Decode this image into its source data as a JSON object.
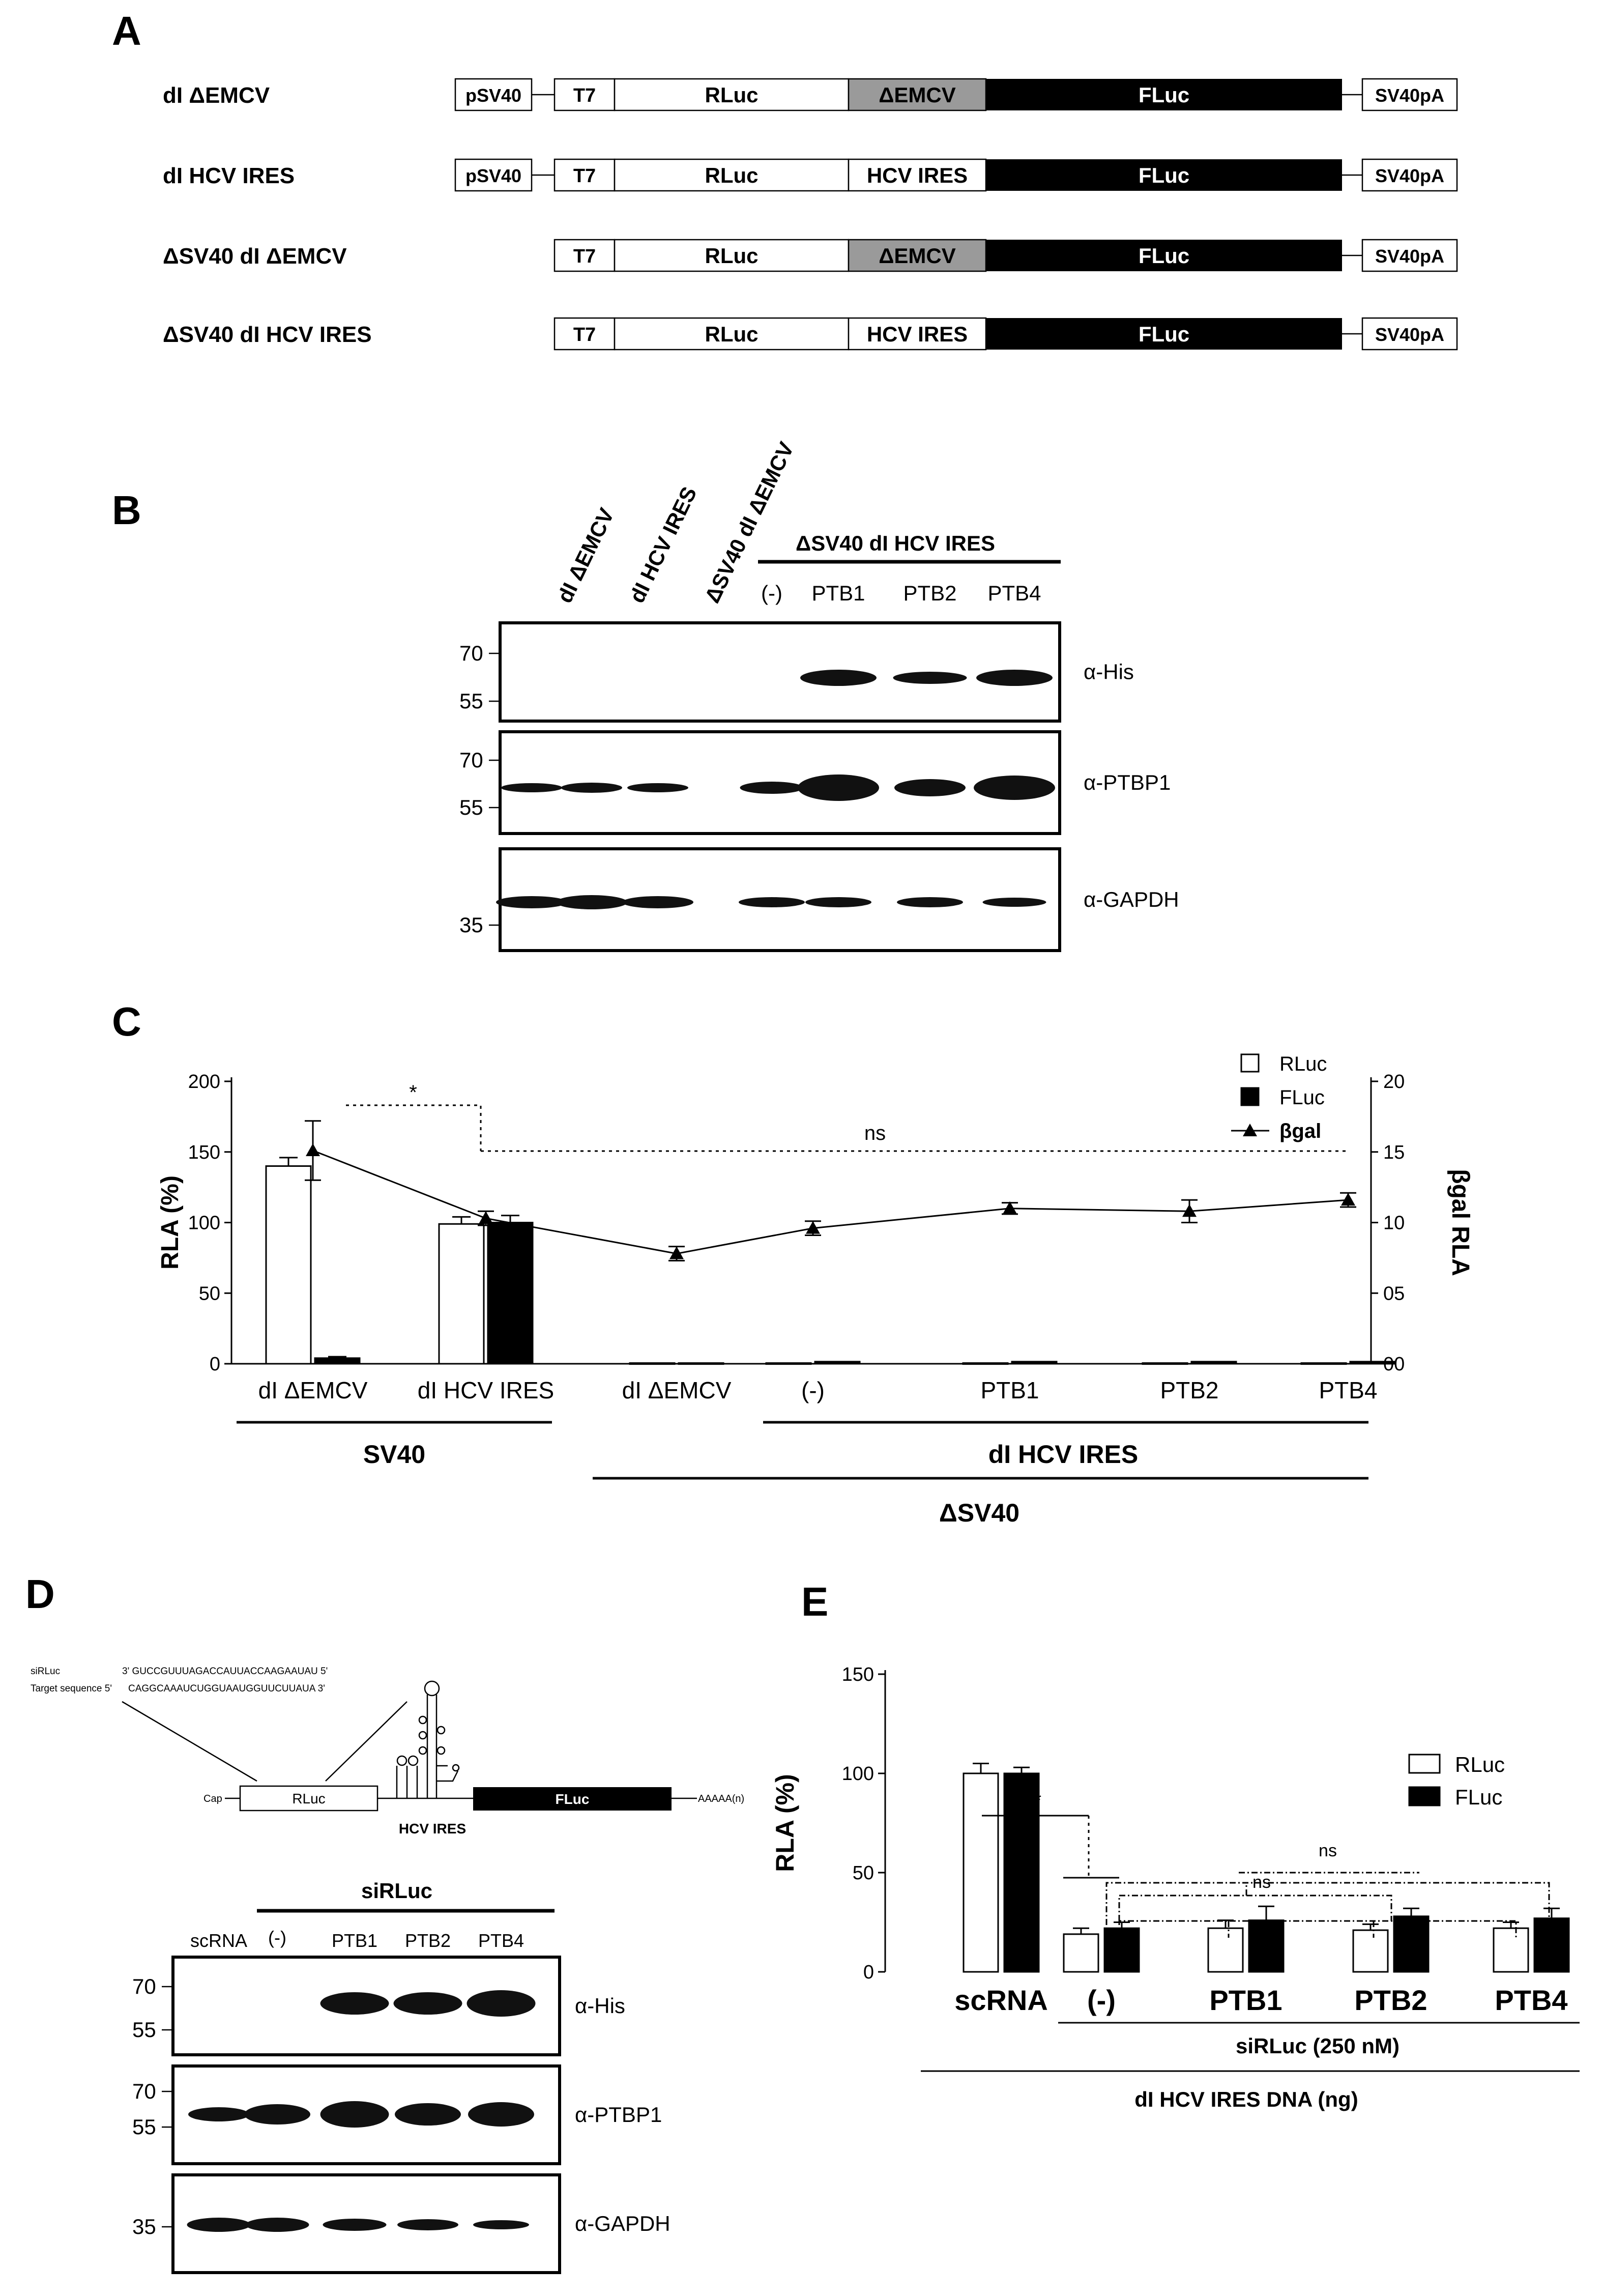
{
  "panels": {
    "A": {
      "letter": "A",
      "constructs": [
        {
          "name": "dI ΔEMCV",
          "has_promoter": true,
          "promoter": "pSV40",
          "t7": "T7",
          "rluc": "RLuc",
          "middle": "ΔEMCV",
          "middle_style": "gray",
          "fluc": "FLuc",
          "polya": "SV40pA"
        },
        {
          "name": "dI HCV IRES",
          "has_promoter": true,
          "promoter": "pSV40",
          "t7": "T7",
          "rluc": "RLuc",
          "middle": "HCV IRES",
          "middle_style": "white",
          "fluc": "FLuc",
          "polya": "SV40pA"
        },
        {
          "name": "ΔSV40 dI ΔEMCV",
          "has_promoter": false,
          "promoter": "",
          "t7": "T7",
          "rluc": "RLuc",
          "middle": "ΔEMCV",
          "middle_style": "gray",
          "fluc": "FLuc",
          "polya": "SV40pA"
        },
        {
          "name": "ΔSV40 dI HCV IRES",
          "has_promoter": false,
          "promoter": "",
          "t7": "T7",
          "rluc": "RLuc",
          "middle": "HCV IRES",
          "middle_style": "white",
          "fluc": "FLuc",
          "polya": "SV40pA"
        }
      ]
    },
    "B": {
      "letter": "B",
      "rotated_lanes": [
        "dI ΔEMCV",
        "dI HCV IRES",
        "ΔSV40 dI ΔEMCV"
      ],
      "group_label": "ΔSV40 dI HCV IRES",
      "lanes": [
        "(-)",
        "PTB1",
        "PTB2",
        "PTB4"
      ],
      "blots": [
        {
          "antibody": "α-His",
          "markers": [
            "70",
            "55"
          ]
        },
        {
          "antibody": "α-PTBP1",
          "markers": [
            "70",
            "55"
          ]
        },
        {
          "antibody": "α-GAPDH",
          "markers": [
            "35"
          ]
        }
      ]
    },
    "C": {
      "letter": "C",
      "sig_star": "*",
      "sig_ns": "ns",
      "group_sv40": "SV40",
      "group_dl_hcv": "dI HCV IRES",
      "group_dsv40": "ΔSV40"
    },
    "D": {
      "letter": "D",
      "sirluc_seq_label": "siRLuc",
      "sirluc_seq": "3' GUCCGUUUAGACCAUUACCAAGAAUAU 5'",
      "target_seq_label": "Target sequence 5'",
      "target_seq": "CAGGCAAAUCUGGUAAUGGUUCUUAUA 3'",
      "cap": "Cap",
      "rluc": "RLuc",
      "ires": "HCV IRES",
      "fluc": "FLuc",
      "polya": "AAAAA(n)",
      "group_label": "siRLuc",
      "lanes": [
        "scRNA",
        "(-)",
        "PTB1",
        "PTB2",
        "PTB4"
      ],
      "blots": [
        {
          "antibody": "α-His",
          "markers": [
            "70",
            "55"
          ]
        },
        {
          "antibody": "α-PTBP1",
          "markers": [
            "70",
            "55"
          ]
        },
        {
          "antibody": "α-GAPDH",
          "markers": [
            "35"
          ]
        }
      ]
    },
    "E": {
      "letter": "E",
      "sig_star": "*",
      "sig_ns_1": "ns",
      "sig_ns_2": "ns",
      "group_sirluc": "siRLuc (250 nM)",
      "group_dna": "dI HCV IRES DNA (ng)"
    }
  },
  "chart_data": [
    {
      "id": "C",
      "type": "bar",
      "ylabel": "RLA (%)",
      "y2label": "βgal RLA",
      "ylim": [
        0,
        200
      ],
      "yticks": [
        0,
        50,
        100,
        150,
        200
      ],
      "y2lim": [
        0,
        20
      ],
      "y2ticks": [
        "00",
        "05",
        "10",
        "15",
        "20"
      ],
      "categories": [
        "dI ΔEMCV",
        "dI HCV IRES",
        "dI ΔEMCV",
        "(-)",
        "PTB1",
        "PTB2",
        "PTB4"
      ],
      "series": [
        {
          "name": "RLuc",
          "kind": "bar",
          "color": "#ffffff",
          "values": [
            140,
            99,
            0.5,
            0.5,
            0.5,
            0.5,
            0.5
          ],
          "errors": [
            6,
            5,
            0,
            0,
            0,
            0,
            0
          ]
        },
        {
          "name": "FLuc",
          "kind": "bar",
          "color": "#000000",
          "values": [
            4,
            100,
            0.5,
            1.5,
            1.5,
            1.5,
            1.5
          ],
          "errors": [
            1,
            5,
            0,
            0,
            0,
            0,
            0
          ]
        },
        {
          "name": "βgal",
          "kind": "line",
          "axis": "right",
          "values": [
            15.1,
            10.3,
            7.8,
            9.6,
            11.0,
            10.8,
            11.6
          ],
          "errors": [
            2.1,
            0.5,
            0.5,
            0.5,
            0.4,
            0.8,
            0.5
          ]
        }
      ],
      "legend": "top-right"
    },
    {
      "id": "E",
      "type": "bar",
      "ylabel": "RLA (%)",
      "ylim": [
        0,
        150
      ],
      "yticks": [
        0,
        50,
        100,
        150
      ],
      "categories": [
        "scRNA",
        "(-)",
        "PTB1",
        "PTB2",
        "PTB4"
      ],
      "series": [
        {
          "name": "RLuc",
          "color": "#ffffff",
          "values": [
            100,
            19,
            22,
            21,
            22
          ],
          "errors": [
            5,
            3,
            4,
            3,
            3
          ]
        },
        {
          "name": "FLuc",
          "color": "#000000",
          "values": [
            100,
            22,
            26,
            28,
            27
          ],
          "errors": [
            3,
            3,
            7,
            4,
            5
          ]
        }
      ],
      "legend": "top-right"
    }
  ]
}
